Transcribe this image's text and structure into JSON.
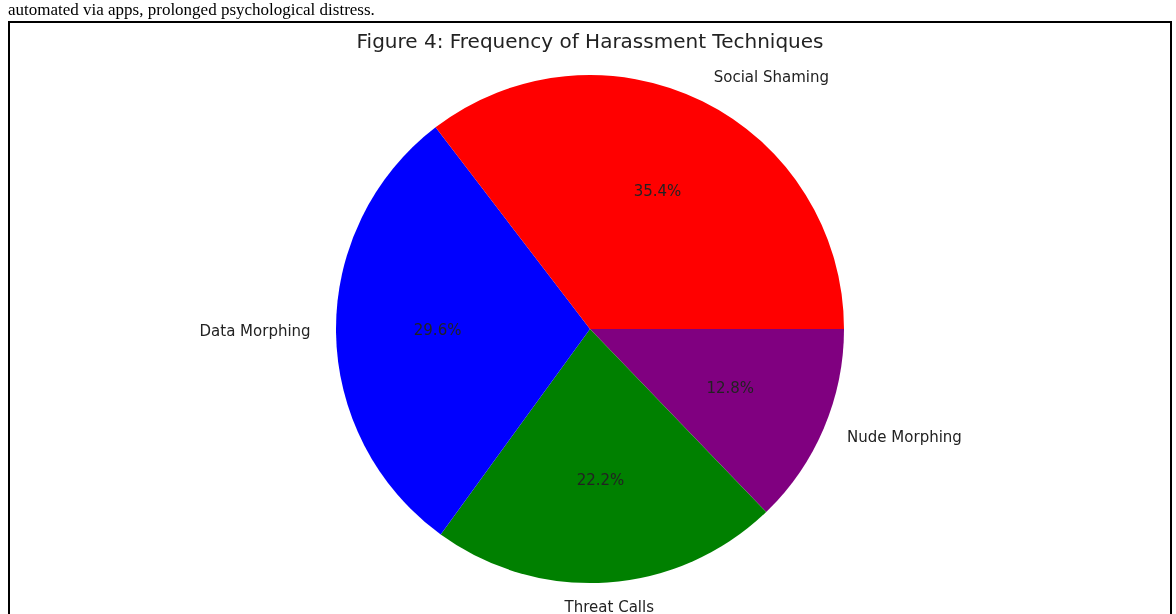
{
  "chart_data": {
    "type": "pie",
    "title": "Figure 4: Frequency of Harassment Techniques",
    "categories": [
      "Social Shaming",
      "Data Morphing",
      "Threat Calls",
      "Nude Morphing"
    ],
    "values": [
      35.4,
      29.6,
      22.2,
      12.8
    ],
    "colors": [
      "#ff0000",
      "#0000ff",
      "#008000",
      "#800080"
    ],
    "value_labels": [
      "35.4%",
      "29.6%",
      "22.2%",
      "12.8%"
    ],
    "annotations": [
      "automated via apps, prolonged psychological distress."
    ],
    "legend": false
  }
}
